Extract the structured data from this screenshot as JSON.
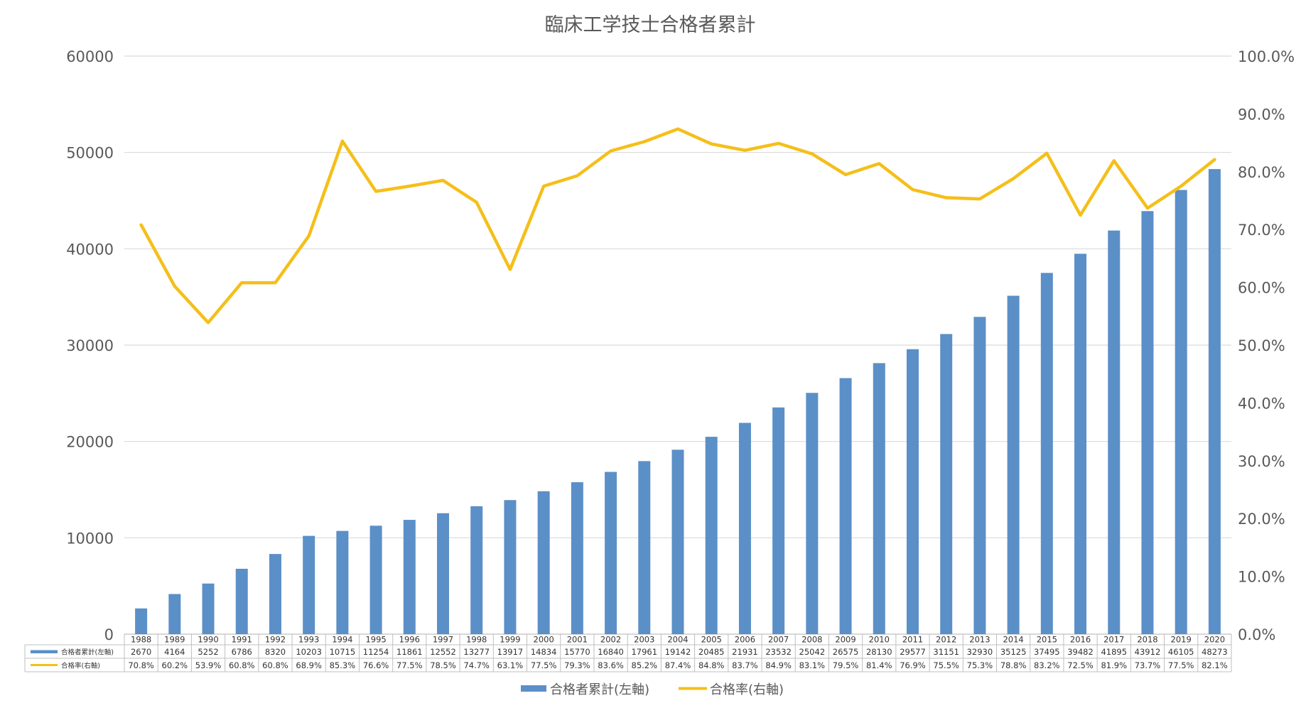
{
  "chart_data": {
    "type": "bar",
    "title": "臨床工学技士合格者累計",
    "categories": [
      "1988",
      "1989",
      "1990",
      "1991",
      "1992",
      "1993",
      "1994",
      "1995",
      "1996",
      "1997",
      "1998",
      "1999",
      "2000",
      "2001",
      "2002",
      "2003",
      "2004",
      "2005",
      "2006",
      "2007",
      "2008",
      "2009",
      "2010",
      "2011",
      "2012",
      "2013",
      "2014",
      "2015",
      "2016",
      "2017",
      "2018",
      "2019",
      "2020"
    ],
    "series": [
      {
        "name": "合格者累計(左軸)",
        "type": "bar",
        "axis": "left",
        "color": "#5b8fc7",
        "values": [
          2670,
          4164,
          5252,
          6786,
          8320,
          10203,
          10715,
          11254,
          11861,
          12552,
          13277,
          13917,
          14834,
          15770,
          16840,
          17961,
          19142,
          20485,
          21931,
          23532,
          25042,
          26575,
          28130,
          29577,
          31151,
          32930,
          35125,
          37495,
          39482,
          41895,
          43912,
          46105,
          48273
        ],
        "labels": [
          "2670",
          "4164",
          "5252",
          "6786",
          "8320",
          "10203",
          "10715",
          "11254",
          "11861",
          "12552",
          "13277",
          "13917",
          "14834",
          "15770",
          "16840",
          "17961",
          "19142",
          "20485",
          "21931",
          "23532",
          "25042",
          "26575",
          "28130",
          "29577",
          "31151",
          "32930",
          "35125",
          "37495",
          "39482",
          "41895",
          "43912",
          "46105",
          "48273"
        ]
      },
      {
        "name": "合格率(右軸)",
        "type": "line",
        "axis": "right",
        "color": "#f5bf1a",
        "values": [
          70.8,
          60.2,
          53.9,
          60.8,
          60.8,
          68.9,
          85.3,
          76.6,
          77.5,
          78.5,
          74.7,
          63.1,
          77.5,
          79.3,
          83.6,
          85.2,
          87.4,
          84.8,
          83.7,
          84.9,
          83.1,
          79.5,
          81.4,
          76.9,
          75.5,
          75.3,
          78.8,
          83.2,
          72.5,
          81.9,
          73.7,
          77.5,
          82.1
        ],
        "labels": [
          "70.8%",
          "60.2%",
          "53.9%",
          "60.8%",
          "60.8%",
          "68.9%",
          "85.3%",
          "76.6%",
          "77.5%",
          "78.5%",
          "74.7%",
          "63.1%",
          "77.5%",
          "79.3%",
          "83.6%",
          "85.2%",
          "87.4%",
          "84.8%",
          "83.7%",
          "84.9%",
          "83.1%",
          "79.5%",
          "81.4%",
          "76.9%",
          "75.5%",
          "75.3%",
          "78.8%",
          "83.2%",
          "72.5%",
          "81.9%",
          "73.7%",
          "77.5%",
          "82.1%"
        ]
      }
    ],
    "y_left": {
      "ylim": [
        0,
        60000
      ],
      "ticks": [
        "0",
        "10000",
        "20000",
        "30000",
        "40000",
        "50000",
        "60000"
      ]
    },
    "y_right": {
      "ylim": [
        0,
        100
      ],
      "ticks": [
        "0.0%",
        "10.0%",
        "20.0%",
        "30.0%",
        "40.0%",
        "50.0%",
        "60.0%",
        "70.0%",
        "80.0%",
        "90.0%",
        "100.0%"
      ]
    },
    "grid": true,
    "legend_position": "bottom",
    "data_table": true
  }
}
